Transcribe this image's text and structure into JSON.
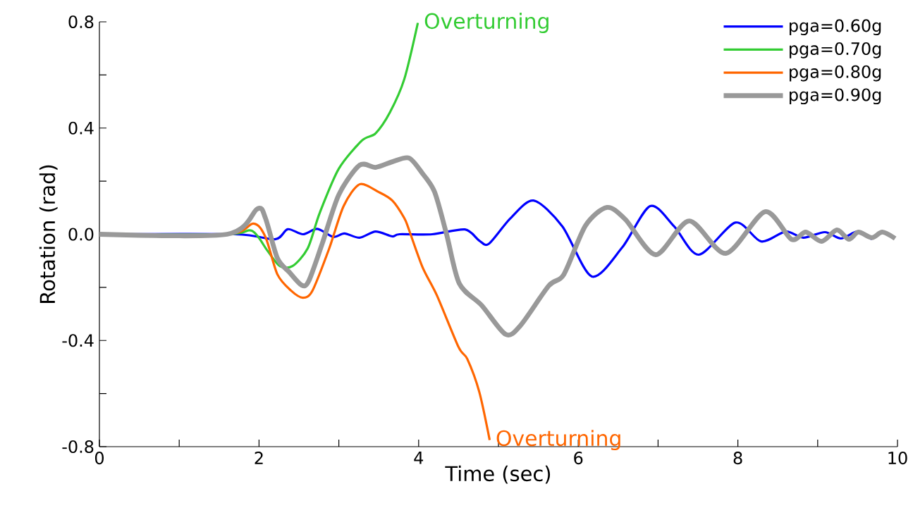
{
  "chart_data": {
    "type": "line",
    "xlabel": "Time (sec)",
    "ylabel": "Rotation (rad)",
    "xlim": [
      0,
      10
    ],
    "ylim": [
      -0.8,
      0.8
    ],
    "xticks": [
      0,
      {
        "value": 1,
        "label": null
      },
      2,
      {
        "value": 3,
        "label": null
      },
      4,
      {
        "value": 5,
        "label": null
      },
      6,
      {
        "value": 7,
        "label": null
      },
      8,
      {
        "value": 9,
        "label": null
      },
      10
    ],
    "yticks": [
      -0.8,
      {
        "value": -0.6,
        "label": null
      },
      -0.4,
      {
        "value": -0.2,
        "label": null
      },
      {
        "value": 0,
        "label": "0.0"
      },
      {
        "value": 0.2,
        "label": null
      },
      0.4,
      {
        "value": 0.6,
        "label": null
      },
      0.8
    ],
    "legend": "top right",
    "grid": false,
    "marker": "none",
    "line_style": "solid",
    "annotations": [
      {
        "text": "Overturning",
        "x": 3.99,
        "y": 0.796
      },
      {
        "text": "Overturning",
        "x": 4.89,
        "y": -0.775
      }
    ],
    "series": [
      {
        "name": "pga=0.60g",
        "color": "#0000ff",
        "x": [
          0,
          1.7,
          2.2,
          2.36,
          2.55,
          2.73,
          2.93,
          3.07,
          3.26,
          3.46,
          3.67,
          3.76,
          4.17,
          4.58,
          4.76,
          4.88,
          5.15,
          5.44,
          5.8,
          6.17,
          6.55,
          6.9,
          7.2,
          7.51,
          7.97,
          8.29,
          8.6,
          8.82,
          9.09,
          9.29,
          9.5,
          9.68
        ],
        "values": [
          0,
          0,
          -0.019,
          0.019,
          0,
          0.02,
          -0.01,
          0.003,
          -0.013,
          0.01,
          -0.008,
          0,
          0,
          0.018,
          -0.024,
          -0.036,
          0.06,
          0.127,
          0.03,
          -0.159,
          -0.05,
          0.106,
          0.03,
          -0.077,
          0.044,
          -0.027,
          0.01,
          -0.013,
          0.008,
          -0.016,
          0.01,
          -0.019
        ]
      },
      {
        "name": "pga=0.70g",
        "color": "#33cc33",
        "x": [
          0,
          1.6,
          1.91,
          2.11,
          2.26,
          2.42,
          2.61,
          2.76,
          3.0,
          3.29,
          3.46,
          3.64,
          3.82,
          3.99
        ],
        "values": [
          0,
          0,
          0.013,
          -0.064,
          -0.12,
          -0.12,
          -0.053,
          0.08,
          0.247,
          0.353,
          0.38,
          0.459,
          0.584,
          0.796
        ]
      },
      {
        "name": "pga=0.80g",
        "color": "#ff6600",
        "x": [
          0,
          1.6,
          1.93,
          2.08,
          2.23,
          2.4,
          2.55,
          2.67,
          2.88,
          3.06,
          3.26,
          3.5,
          3.67,
          3.82,
          3.88,
          4.05,
          4.23,
          4.5,
          4.61,
          4.76,
          4.89
        ],
        "values": [
          0,
          0,
          0.04,
          -0.01,
          -0.151,
          -0.212,
          -0.239,
          -0.212,
          -0.053,
          0.106,
          0.188,
          0.159,
          0.127,
          0.061,
          0.016,
          -0.125,
          -0.231,
          -0.425,
          -0.47,
          -0.594,
          -0.775
        ]
      },
      {
        "name": "pga=0.90g",
        "color": "#999999",
        "x": [
          0,
          1.6,
          1.98,
          2.08,
          2.23,
          2.38,
          2.53,
          2.62,
          2.79,
          3.0,
          3.26,
          3.46,
          3.67,
          3.88,
          4.05,
          4.2,
          4.35,
          4.51,
          4.79,
          5.09,
          5.28,
          5.63,
          5.82,
          6.09,
          6.36,
          6.59,
          6.97,
          7.39,
          7.85,
          8.34,
          8.67,
          8.85,
          9.05,
          9.24,
          9.39,
          9.51,
          9.68,
          9.81,
          9.97
        ],
        "values": [
          0,
          0,
          0.096,
          0.061,
          -0.09,
          -0.143,
          -0.191,
          -0.178,
          -0.037,
          0.149,
          0.26,
          0.252,
          0.273,
          0.287,
          0.228,
          0.159,
          0,
          -0.186,
          -0.268,
          -0.377,
          -0.342,
          -0.194,
          -0.151,
          0.032,
          0.101,
          0.056,
          -0.077,
          0.05,
          -0.072,
          0.085,
          -0.019,
          0.008,
          -0.027,
          0.016,
          -0.019,
          0.008,
          -0.013,
          0.008,
          -0.016
        ]
      }
    ]
  }
}
